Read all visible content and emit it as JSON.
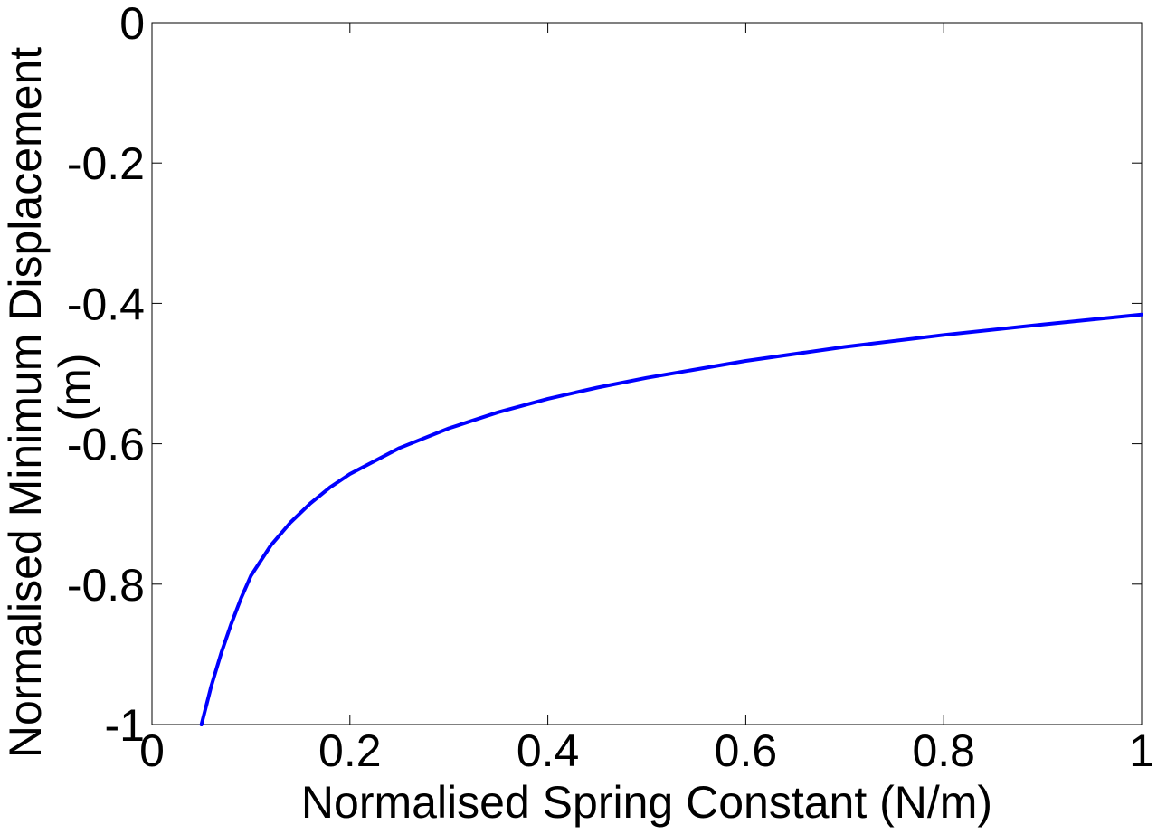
{
  "chart_data": {
    "type": "line",
    "xlabel": "Normalised Spring Constant (N/m)",
    "ylabel_lines": [
      "Normalised Minimum Displacement",
      "(m)"
    ],
    "xlim": [
      0,
      1
    ],
    "ylim": [
      -1,
      0
    ],
    "xticks": [
      "0",
      "0.2",
      "0.4",
      "0.6",
      "0.8",
      "1"
    ],
    "yticks": [
      "0",
      "-0.2",
      "-0.4",
      "-0.6",
      "-0.8",
      "-1"
    ],
    "grid": false,
    "series": [
      {
        "color": "#0000ff",
        "x": [
          0.05,
          0.06,
          0.07,
          0.08,
          0.09,
          0.1,
          0.12,
          0.14,
          0.16,
          0.18,
          0.2,
          0.25,
          0.3,
          0.35,
          0.4,
          0.45,
          0.5,
          0.6,
          0.7,
          0.8,
          0.9,
          1.0
        ],
        "y": [
          -1.0,
          -0.945,
          -0.898,
          -0.857,
          -0.82,
          -0.788,
          -0.745,
          -0.712,
          -0.685,
          -0.662,
          -0.643,
          -0.606,
          -0.578,
          -0.555,
          -0.536,
          -0.52,
          -0.506,
          -0.482,
          -0.462,
          -0.445,
          -0.43,
          -0.416
        ]
      }
    ]
  }
}
